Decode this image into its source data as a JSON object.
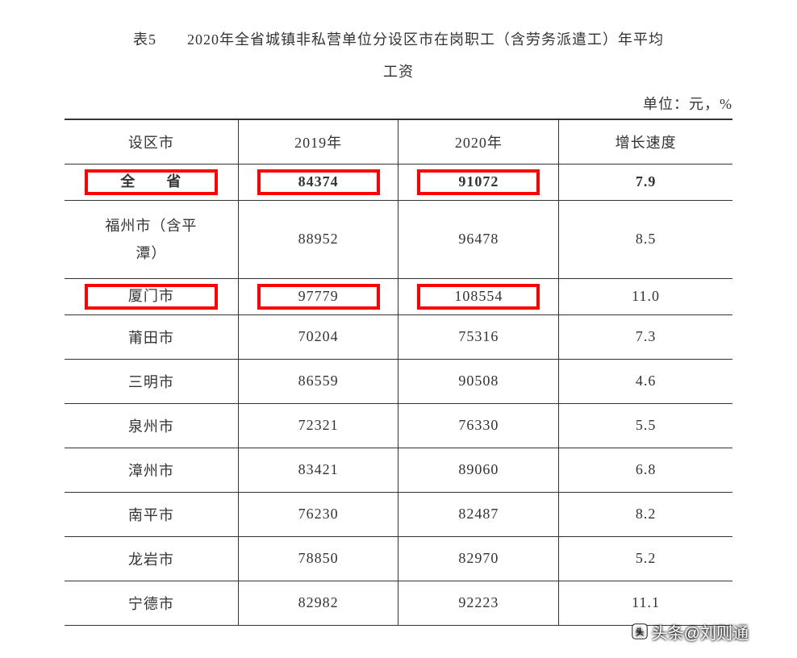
{
  "title_line1": "表5　　2020年全省城镇非私营单位分设区市在岗职工（含劳务派遣工）年平均",
  "title_line2": "工资",
  "unit_label": "单位：元，%",
  "columns": [
    "设区市",
    "2019年",
    "2020年",
    "增长速度"
  ],
  "rows": [
    {
      "city": "全　　省",
      "y2019": "84374",
      "y2020": "91072",
      "growth": "7.9",
      "bold": true,
      "highlight": true,
      "spaced": false
    },
    {
      "city": "福州市（含平潭）",
      "y2019": "88952",
      "y2020": "96478",
      "growth": "8.5",
      "bold": false,
      "highlight": false,
      "multiline": true
    },
    {
      "city": "厦门市",
      "y2019": "97779",
      "y2020": "108554",
      "growth": "11.0",
      "bold": false,
      "highlight": true
    },
    {
      "city": "莆田市",
      "y2019": "70204",
      "y2020": "75316",
      "growth": "7.3"
    },
    {
      "city": "三明市",
      "y2019": "86559",
      "y2020": "90508",
      "growth": "4.6"
    },
    {
      "city": "泉州市",
      "y2019": "72321",
      "y2020": "76330",
      "growth": "5.5"
    },
    {
      "city": "漳州市",
      "y2019": "83421",
      "y2020": "89060",
      "growth": "6.8"
    },
    {
      "city": "南平市",
      "y2019": "76230",
      "y2020": "82487",
      "growth": "8.2"
    },
    {
      "city": "龙岩市",
      "y2019": "78850",
      "y2020": "82970",
      "growth": "5.2"
    },
    {
      "city": "宁德市",
      "y2019": "82982",
      "y2020": "92223",
      "growth": "11.1"
    }
  ],
  "watermark": "头条@刘则通",
  "style": {
    "highlight_border_color": "#ff0000",
    "border_color": "#333333",
    "text_color": "#333333",
    "background_color": "#ffffff",
    "font_size_pt": 18,
    "col_widths_pct": [
      26,
      24,
      24,
      26
    ]
  }
}
